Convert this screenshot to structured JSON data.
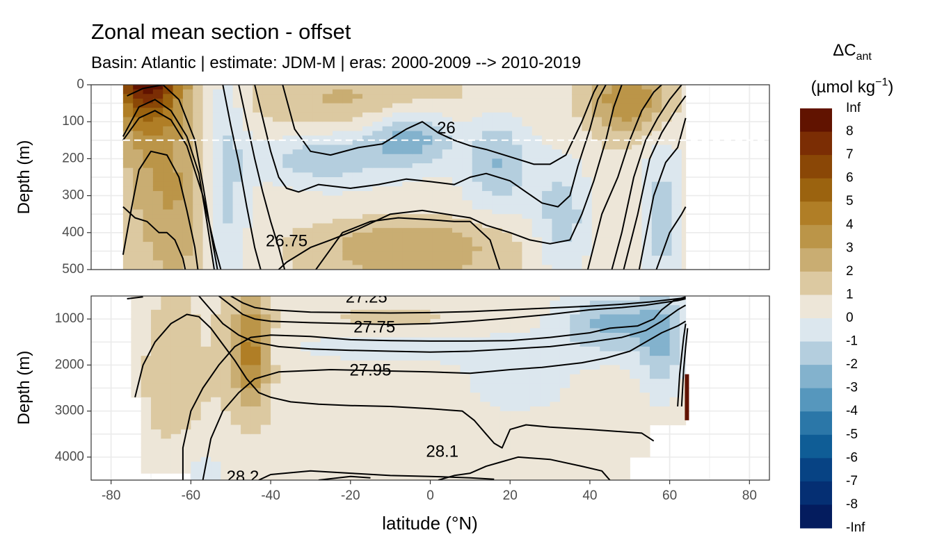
{
  "chart_data": {
    "type": "heatmap",
    "title": "Zonal mean section - offset",
    "subtitle": "Basin: Atlantic | estimate: JDM-M | eras: 2000-2009 --> 2010-2019",
    "xlabel": "latitude (°N)",
    "xlim": [
      -85,
      85
    ],
    "xticks": [
      "-80",
      "-60",
      "-40",
      "-20",
      "0",
      "20",
      "40",
      "60",
      "80"
    ],
    "xtick_values": [
      -80,
      -60,
      -40,
      -20,
      0,
      20,
      40,
      60,
      80
    ],
    "data_lat_range": [
      -77,
      64
    ],
    "reference_line_depth_m": 150,
    "panels": [
      {
        "name": "upper",
        "ylabel": "Depth (m)",
        "ylim": [
          0,
          500
        ],
        "yticks": [
          "0",
          "100",
          "200",
          "300",
          "400",
          "500"
        ],
        "ytick_values": [
          0,
          100,
          200,
          300,
          400,
          500
        ],
        "contour_labels": [
          {
            "text": "26",
            "lat": 4,
            "depth": 120
          },
          {
            "text": "26.75",
            "lat": -36,
            "depth": 425
          }
        ]
      },
      {
        "name": "lower",
        "ylabel": "Depth (m)",
        "ylim": [
          500,
          4500
        ],
        "yticks": [
          "1000",
          "2000",
          "3000",
          "4000"
        ],
        "ytick_values": [
          1000,
          2000,
          3000,
          4000
        ],
        "contour_labels": [
          {
            "text": "27.25",
            "lat": -16,
            "depth": 550
          },
          {
            "text": "27.75",
            "lat": -14,
            "depth": 1200
          },
          {
            "text": "27.95",
            "lat": -15,
            "depth": 2130
          },
          {
            "text": "28.1",
            "lat": 3,
            "depth": 3900
          },
          {
            "text": "28.2",
            "lat": -47,
            "depth": 4450
          }
        ]
      }
    ],
    "colorbar": {
      "title": "ΔC",
      "title_sub": "ant",
      "unit_main": "(µmol kg",
      "unit_sup": "−1",
      "unit_close": ")",
      "labels": [
        "Inf",
        "8",
        "7",
        "6",
        "5",
        "4",
        "3",
        "2",
        "1",
        "0",
        "-1",
        "-2",
        "-3",
        "-4",
        "-5",
        "-6",
        "-7",
        "-8",
        "-Inf"
      ],
      "colors": [
        "#611300",
        "#7b2d04",
        "#8a4706",
        "#9b630f",
        "#b07e26",
        "#bb9548",
        "#c9ad72",
        "#dcc9a1",
        "#ede6d8",
        "#dce7ee",
        "#b4cede",
        "#83b2cd",
        "#5697bd",
        "#2b77a8",
        "#0f5d96",
        "#074384",
        "#052f73",
        "#041c5e"
      ]
    }
  }
}
